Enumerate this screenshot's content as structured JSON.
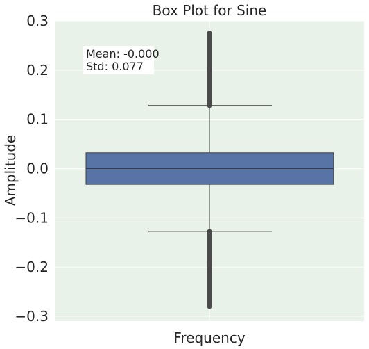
{
  "chart_data": {
    "type": "box",
    "title": "Box Plot for Sine",
    "xlabel": "Frequency",
    "ylabel": "Amplitude",
    "ylim": [
      -0.31,
      0.3
    ],
    "yticks": [
      0.3,
      0.2,
      0.1,
      0.0,
      -0.1,
      -0.2,
      -0.3
    ],
    "ytick_labels": [
      "0.3",
      "0.2",
      "0.1",
      "0.0",
      "−0.1",
      "−0.2",
      "−0.3"
    ],
    "grid": true,
    "box": {
      "q1": -0.032,
      "median": 0.0,
      "q3": 0.032,
      "whisker_low": -0.128,
      "whisker_high": 0.128,
      "outliers_low": [
        -0.128,
        -0.28
      ],
      "outliers_high": [
        0.128,
        0.275
      ]
    },
    "annotation": {
      "mean_text": "Mean: -0.000",
      "std_text": "Std: 0.077"
    },
    "colors": {
      "background": "#e8f2e8",
      "box_fill": "#5874a6",
      "line": "#3d3d3d",
      "outlier": "#4a4a4a",
      "grid": "#ffffff"
    }
  }
}
